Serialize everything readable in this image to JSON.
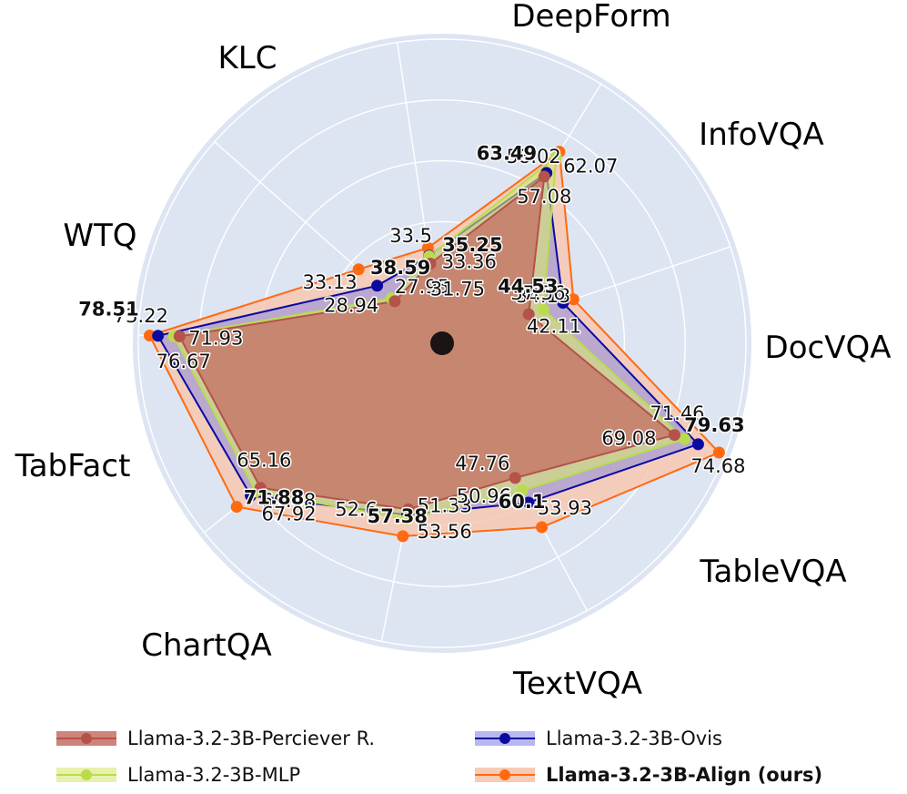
{
  "chart_data": {
    "type": "radar",
    "axes": [
      "DeepForm",
      "InfoVQA",
      "DocVQA",
      "TableVQA",
      "TextVQA",
      "ChartQA",
      "TabFact",
      "WTQ",
      "KLC"
    ],
    "series": [
      {
        "name": "Llama-3.2-3B-Perciever R.",
        "color": "#b5524a",
        "fill": "#c46e63",
        "values": [
          57.08,
          34.13,
          69.08,
          47.76,
          51.33,
          65.16,
          71.93,
          27.95,
          31.75
        ]
      },
      {
        "name": "Llama-3.2-3B-MLP",
        "color": "#b9dc4e",
        "fill": "#d7e86f",
        "values": [
          62.07,
          37.56,
          71.46,
          50.96,
          53.56,
          66.48,
          73.22,
          28.94,
          33.36
        ]
      },
      {
        "name": "Llama-3.2-3B-Ovis",
        "color": "#0a0aa0",
        "fill": "#8a8adf",
        "values": [
          58.02,
          42.11,
          74.68,
          53.93,
          52.6,
          67.92,
          76.67,
          33.13,
          33.5
        ]
      },
      {
        "name": "Llama-3.2-3B-Align (ours)",
        "color": "#ff6a10",
        "fill": "#f7c8b1",
        "values": [
          63.49,
          44.53,
          79.63,
          60.1,
          57.38,
          71.88,
          78.51,
          38.59,
          35.25
        ]
      }
    ],
    "value_labels": [
      [
        "57.08",
        "34.13",
        "69.08",
        "47.76",
        "51.33",
        "65.16",
        "71.93",
        "27.95",
        "31.75"
      ],
      [
        "62.07",
        "37.56",
        "71.46",
        "50.96",
        "53.56",
        "66.48",
        "73.22",
        "28.94",
        "33.36"
      ],
      [
        "58.02",
        "42.11",
        "74.68",
        "53.93",
        "52.6",
        "67.92",
        "76.67",
        "33.13",
        "33.5"
      ],
      [
        "63.49",
        "44.53",
        "79.63",
        "60.1",
        "57.38",
        "71.88",
        "78.51",
        "38.59",
        "35.25"
      ]
    ],
    "best_series": "Llama-3.2-3B-Align (ours)",
    "grid": true,
    "legend_position": "bottom"
  }
}
